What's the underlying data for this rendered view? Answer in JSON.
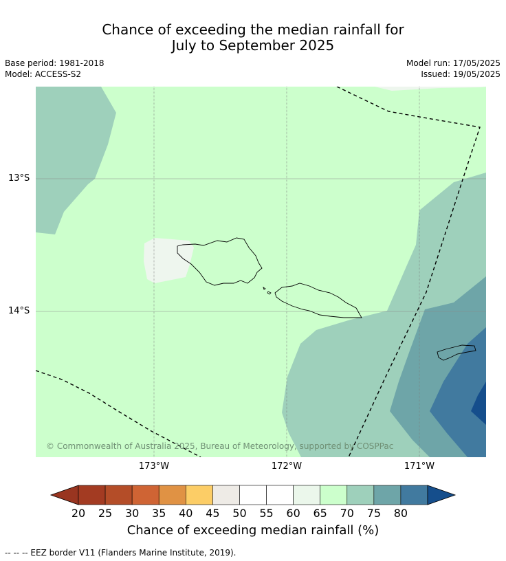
{
  "title": {
    "line1": "Chance of exceeding the median rainfall for",
    "line2": "July to September 2025"
  },
  "meta": {
    "base_period": "Base period: 1981-2018",
    "model": "Model: ACCESS-S2",
    "model_run": "Model run: 17/05/2025",
    "issued": "Issued: 19/05/2025"
  },
  "map": {
    "latitude_labels": [
      "13°S",
      "14°S"
    ],
    "longitude_labels": [
      "173°W",
      "172°W",
      "171°W"
    ],
    "copyright": "© Commonwealth of Australia 2025, Bureau of Meteorology, supported by COSPPac",
    "colors": {
      "60-65": "#ccffcc",
      "65-70": "#9ed0bb",
      "70-75": "#6ea5a8",
      "75-80": "#417a9f",
      "80+": "#154e8c",
      "50-60": "#eef6ee"
    }
  },
  "colorbar": {
    "ticks": [
      "20",
      "25",
      "30",
      "35",
      "40",
      "45",
      "50",
      "55",
      "60",
      "65",
      "70",
      "75",
      "80"
    ],
    "colors": [
      "#a33b22",
      "#b44d28",
      "#cf6434",
      "#e09244",
      "#fccd66",
      "#eeebe6",
      "#ffffff",
      "#ffffff",
      "#ebf7eb",
      "#ccffcc",
      "#9ed0bb",
      "#6ea5a8",
      "#417a9f"
    ],
    "under_color": "#993520",
    "over_color": "#154e8c",
    "label": "Chance of exceeding median rainfall (%)"
  },
  "footer": "--  --  -- EEZ border V11 (Flanders Marine Institute, 2019)."
}
